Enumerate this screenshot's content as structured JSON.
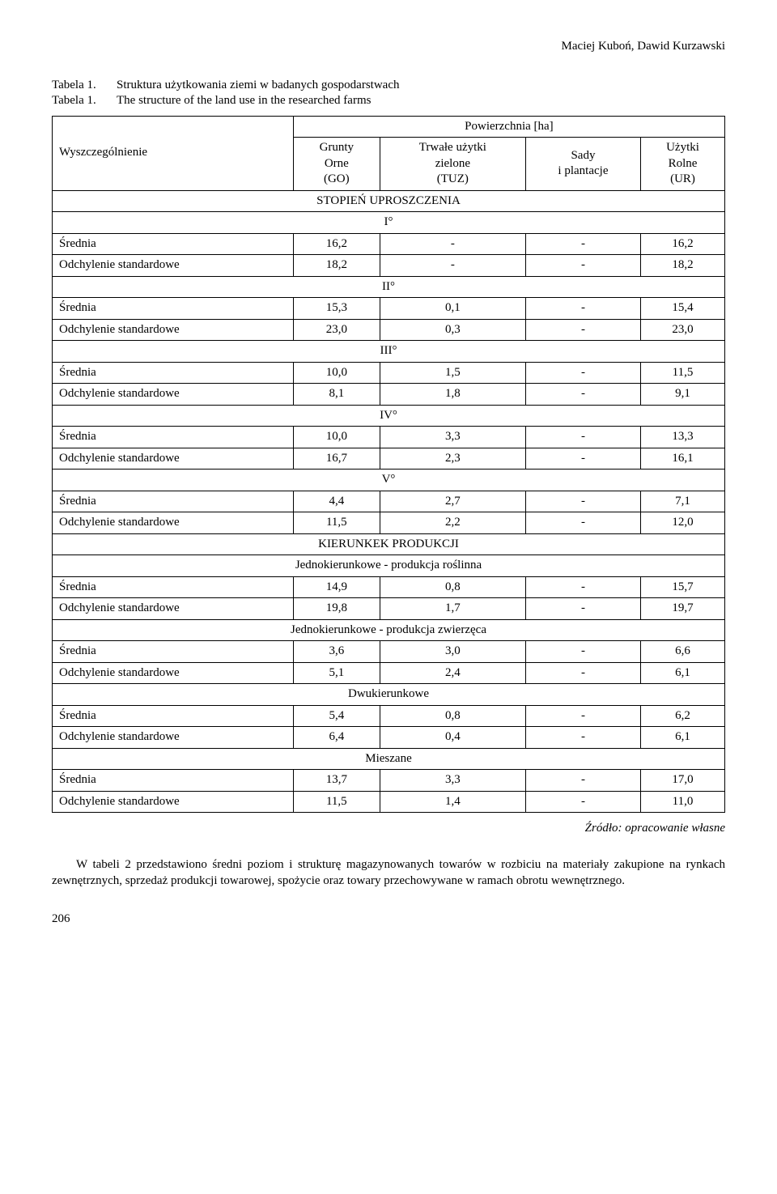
{
  "header": {
    "authors": "Maciej Kuboń, Dawid Kurzawski"
  },
  "caption": {
    "t1_label": "Tabela 1.",
    "t1_text": "Struktura użytkowania ziemi w badanych gospodarstwach",
    "t1_label_en": "Tabela 1.",
    "t1_text_en": "The structure of the land use in the researched farms"
  },
  "table": {
    "colgroup_header": "Powierzchnia [ha]",
    "rowhead": "Wyszczególnienie",
    "col1_l1": "Grunty",
    "col1_l2": "Orne",
    "col1_l3": "(GO)",
    "col2_l1": "Trwałe użytki",
    "col2_l2": "zielone",
    "col2_l3": "(TUZ)",
    "col3_l1": "Sady",
    "col3_l2": "i plantacje",
    "col4_l1": "Użytki",
    "col4_l2": "Rolne",
    "col4_l3": "(UR)",
    "section_stopien": "STOPIEŃ UPROSZCZENIA",
    "deg1": "I°",
    "deg2": "II°",
    "deg3": "III°",
    "deg4": "IV°",
    "deg5": "V°",
    "section_kierunek": "KIERUNKEK PRODUKCJI",
    "sub_roslinna": "Jednokierunkowe - produkcja roślinna",
    "sub_zwierzeca": "Jednokierunkowe - produkcja zwierzęca",
    "sub_dwu": "Dwukierunkowe",
    "sub_miesz": "Mieszane",
    "lbl_srednia": "Średnia",
    "lbl_odch": "Odchylenie standardowe",
    "rows": {
      "d1s": [
        "16,2",
        "-",
        "-",
        "16,2"
      ],
      "d1o": [
        "18,2",
        "-",
        "-",
        "18,2"
      ],
      "d2s": [
        "15,3",
        "0,1",
        "-",
        "15,4"
      ],
      "d2o": [
        "23,0",
        "0,3",
        "-",
        "23,0"
      ],
      "d3s": [
        "10,0",
        "1,5",
        "-",
        "11,5"
      ],
      "d3o": [
        "8,1",
        "1,8",
        "-",
        "9,1"
      ],
      "d4s": [
        "10,0",
        "3,3",
        "-",
        "13,3"
      ],
      "d4o": [
        "16,7",
        "2,3",
        "-",
        "16,1"
      ],
      "d5s": [
        "4,4",
        "2,7",
        "-",
        "7,1"
      ],
      "d5o": [
        "11,5",
        "2,2",
        "-",
        "12,0"
      ],
      "ros_s": [
        "14,9",
        "0,8",
        "-",
        "15,7"
      ],
      "ros_o": [
        "19,8",
        "1,7",
        "-",
        "19,7"
      ],
      "zw_s": [
        "3,6",
        "3,0",
        "-",
        "6,6"
      ],
      "zw_o": [
        "5,1",
        "2,4",
        "-",
        "6,1"
      ],
      "dw_s": [
        "5,4",
        "0,8",
        "-",
        "6,2"
      ],
      "dw_o": [
        "6,4",
        "0,4",
        "-",
        "6,1"
      ],
      "mi_s": [
        "13,7",
        "3,3",
        "-",
        "17,0"
      ],
      "mi_o": [
        "11,5",
        "1,4",
        "-",
        "11,0"
      ]
    }
  },
  "source": "Źródło: opracowanie własne",
  "body": "W tabeli 2 przedstawiono średni poziom i strukturę magazynowanych towarów w rozbiciu na materiały zakupione na rynkach zewnętrznych, sprzedaż produkcji towarowej, spożycie oraz towary przechowywane w ramach obrotu wewnętrznego.",
  "pagenum": "206",
  "style": {
    "font_family": "Times New Roman",
    "text_color": "#000000",
    "background_color": "#ffffff",
    "border_color": "#000000",
    "base_fontsize_pt": 11
  }
}
